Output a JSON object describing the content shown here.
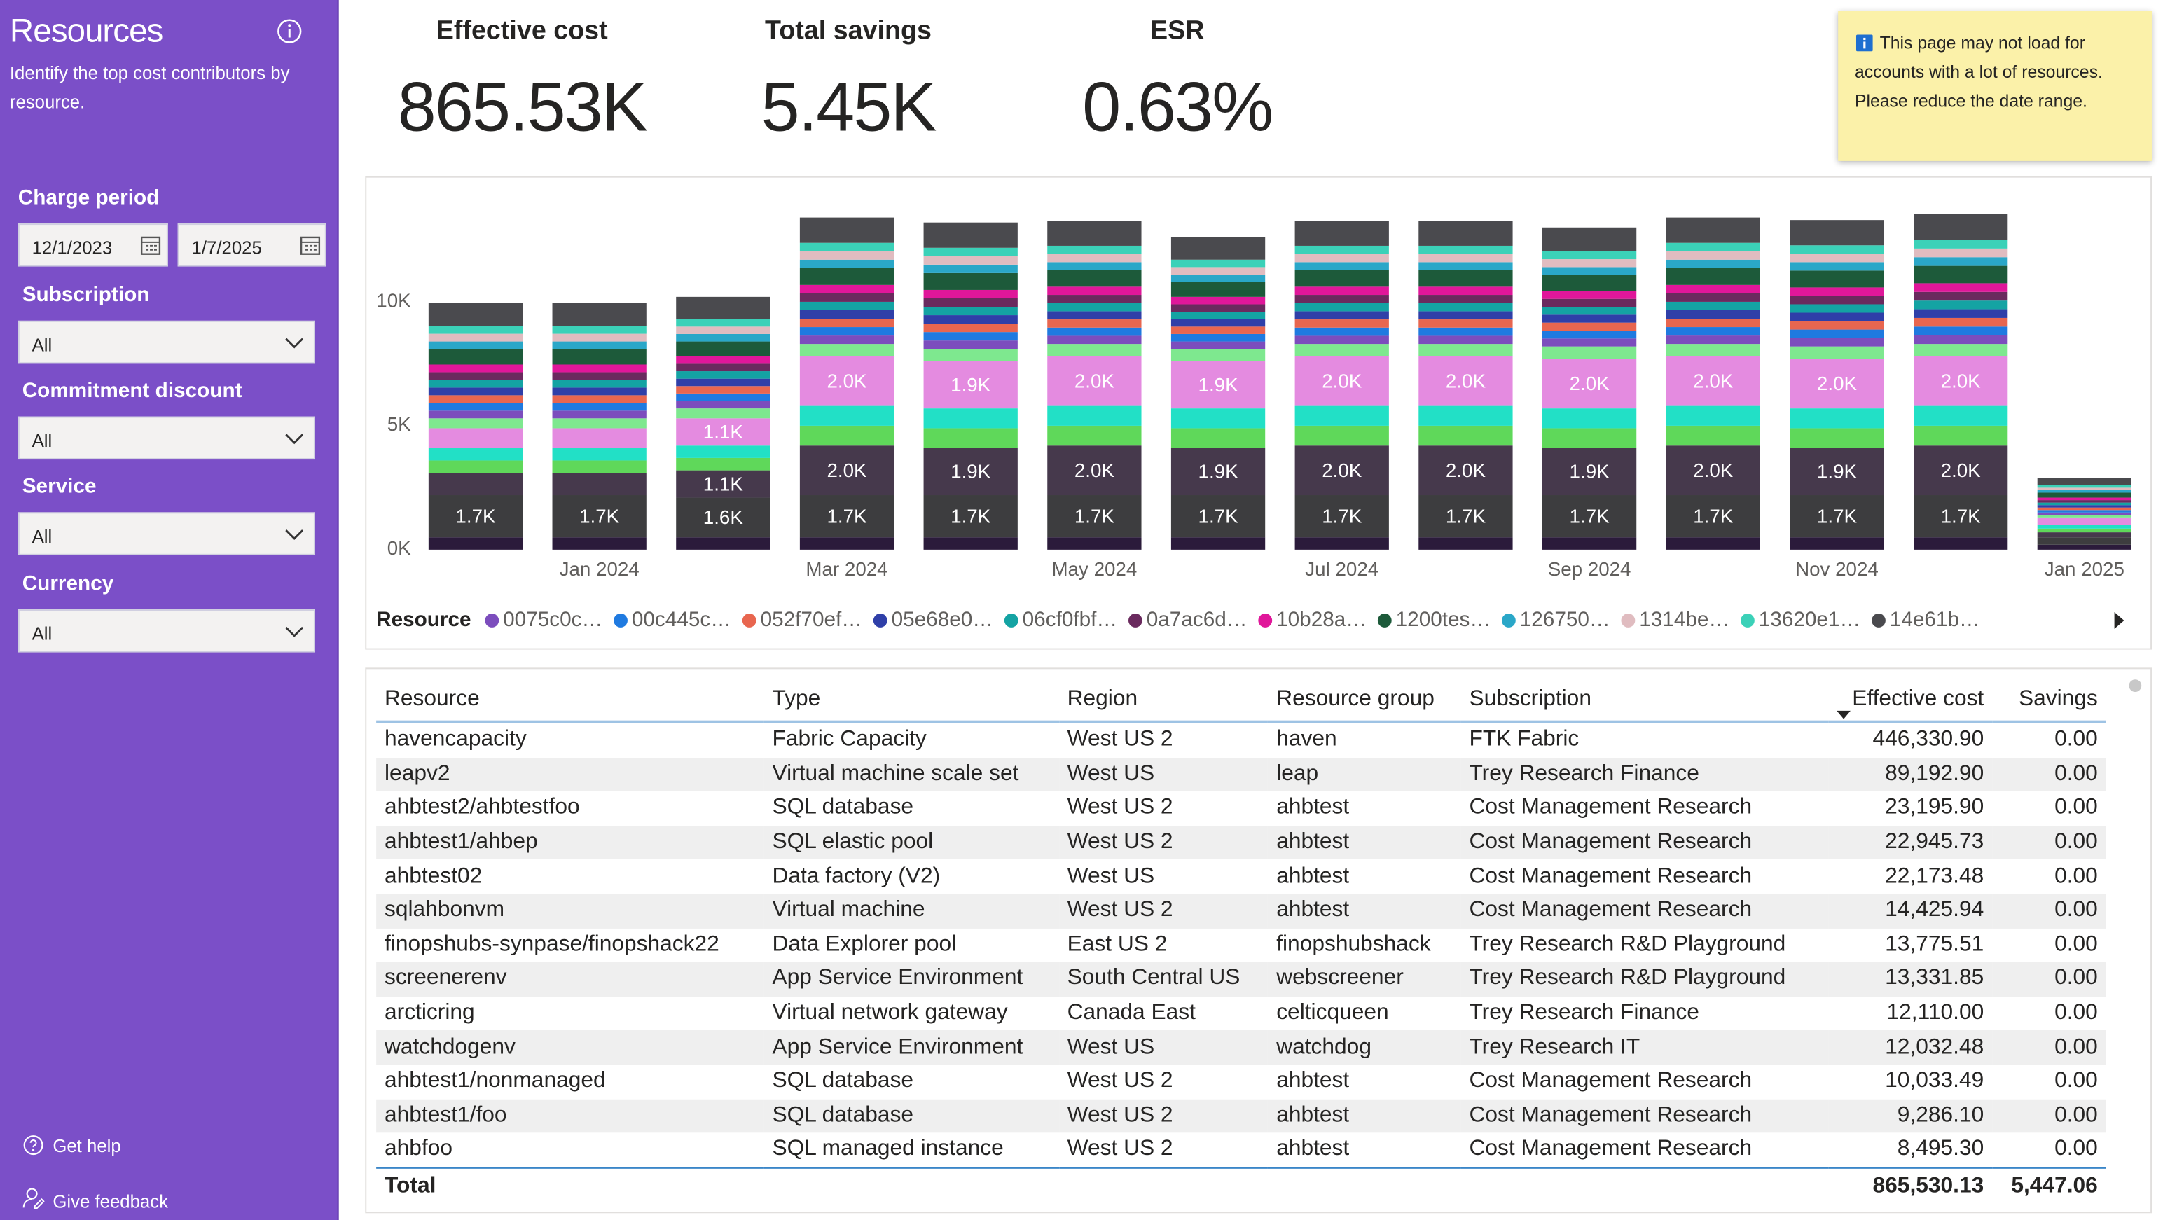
{
  "sidebar": {
    "title": "Resources",
    "description": "Identify the top cost contributors by resource.",
    "filters": [
      {
        "label": "Charge period",
        "values": [
          "12/1/2023",
          "1/7/2025"
        ]
      },
      {
        "label": "Subscription",
        "value": "All"
      },
      {
        "label": "Commitment discount",
        "value": "All"
      },
      {
        "label": "Service",
        "value": "All"
      },
      {
        "label": "Currency",
        "value": "All"
      }
    ],
    "footer": [
      "Get help",
      "Give feedback"
    ]
  },
  "kpis": [
    {
      "label": "Effective cost",
      "value": "865.53K"
    },
    {
      "label": "Total savings",
      "value": "5.45K"
    },
    {
      "label": "ESR",
      "value": "0.63%"
    }
  ],
  "notice": "This page may not load for accounts with a lot of resources. Please reduce the date range.",
  "chart_data": {
    "type": "stacked-bar",
    "legend_title": "Resource",
    "categories": [
      null,
      "Jan 2024",
      null,
      "Mar 2024",
      null,
      "May 2024",
      null,
      "Jul 2024",
      null,
      "Sep 2024",
      null,
      "Nov 2024",
      null,
      "Jan 2025"
    ],
    "ylim": [
      0,
      14000
    ],
    "yticks": [
      {
        "value": 0,
        "label": "0K"
      },
      {
        "value": 5000,
        "label": "5K"
      },
      {
        "value": 10000,
        "label": "10K"
      }
    ],
    "series": [
      {
        "color": "#2b1b3b",
        "values": [
          500,
          500,
          500,
          500,
          500,
          500,
          500,
          500,
          500,
          500,
          500,
          500,
          500,
          200
        ]
      },
      {
        "color": "#3d3d3f",
        "values": [
          1700,
          1700,
          1600,
          1700,
          1700,
          1700,
          1700,
          1700,
          1700,
          1700,
          1700,
          1700,
          1700,
          300
        ],
        "value_labels": [
          "1.7K",
          "1.7K",
          "1.6K",
          "1.7K",
          "1.7K",
          "1.7K",
          "1.7K",
          "1.7K",
          "1.7K",
          "1.7K",
          "1.7K",
          "1.7K",
          "1.7K",
          null
        ]
      },
      {
        "color": "#46394c",
        "values": [
          900,
          900,
          1100,
          2000,
          1900,
          2000,
          1900,
          2000,
          2000,
          1900,
          2000,
          1900,
          2000,
          200
        ],
        "value_labels": [
          null,
          null,
          "1.1K",
          "2.0K",
          "1.9K",
          "2.0K",
          "1.9K",
          "2.0K",
          "2.0K",
          "1.9K",
          "2.0K",
          "1.9K",
          "2.0K",
          null
        ]
      },
      {
        "color": "#5fd85a",
        "values": [
          500,
          500,
          500,
          800,
          800,
          800,
          800,
          800,
          800,
          800,
          800,
          800,
          800,
          150
        ]
      },
      {
        "color": "#22e0c6",
        "values": [
          500,
          500,
          500,
          800,
          800,
          800,
          800,
          800,
          800,
          800,
          800,
          800,
          800,
          150
        ]
      },
      {
        "color": "#e48be0",
        "values": [
          800,
          800,
          1100,
          2000,
          1900,
          2000,
          1900,
          2000,
          2000,
          2000,
          2000,
          2000,
          2000,
          300
        ],
        "value_labels": [
          null,
          null,
          "1.1K",
          "2.0K",
          "1.9K",
          "2.0K",
          "1.9K",
          "2.0K",
          "2.0K",
          "2.0K",
          "2.0K",
          "2.0K",
          "2.0K",
          null
        ]
      },
      {
        "color": "#7ee88f",
        "values": [
          400,
          400,
          400,
          500,
          500,
          500,
          500,
          500,
          500,
          500,
          500,
          500,
          500,
          100
        ]
      },
      {
        "name": "0075c0c…",
        "color": "#7c4dbd",
        "values": [
          310,
          310,
          300,
          340,
          340,
          330,
          300,
          330,
          330,
          320,
          340,
          340,
          350,
          100
        ]
      },
      {
        "name": "00c445c…",
        "color": "#1f7ae0",
        "values": [
          310,
          310,
          300,
          340,
          340,
          330,
          300,
          330,
          330,
          320,
          340,
          340,
          350,
          100
        ]
      },
      {
        "name": "052f70ef…",
        "color": "#e8664f",
        "values": [
          310,
          310,
          300,
          340,
          340,
          330,
          300,
          330,
          330,
          320,
          340,
          340,
          350,
          100
        ]
      },
      {
        "name": "05e68e0…",
        "color": "#2f3fa8",
        "values": [
          310,
          310,
          300,
          340,
          340,
          330,
          300,
          330,
          330,
          320,
          340,
          340,
          350,
          100
        ]
      },
      {
        "name": "06cf0fbf…",
        "color": "#14a3a3",
        "values": [
          310,
          310,
          300,
          340,
          340,
          330,
          300,
          330,
          330,
          320,
          340,
          340,
          350,
          100
        ]
      },
      {
        "name": "0a7ac6d…",
        "color": "#6a2a5e",
        "values": [
          310,
          310,
          300,
          340,
          340,
          330,
          300,
          330,
          330,
          320,
          340,
          340,
          350,
          100
        ]
      },
      {
        "name": "10b28a…",
        "color": "#e0179a",
        "values": [
          310,
          310,
          300,
          340,
          340,
          330,
          300,
          330,
          330,
          320,
          340,
          340,
          350,
          100
        ]
      },
      {
        "name": "1200tes…",
        "color": "#1d5a3a",
        "values": [
          620,
          620,
          600,
          680,
          680,
          660,
          600,
          660,
          660,
          640,
          680,
          680,
          700,
          200
        ]
      },
      {
        "name": "126750…",
        "color": "#2aa7c8",
        "values": [
          310,
          310,
          300,
          340,
          340,
          330,
          300,
          330,
          330,
          320,
          340,
          340,
          350,
          100
        ]
      },
      {
        "name": "1314be…",
        "color": "#e0bcc0",
        "values": [
          310,
          310,
          300,
          340,
          340,
          330,
          300,
          330,
          330,
          320,
          340,
          340,
          350,
          100
        ]
      },
      {
        "name": "13620e1…",
        "color": "#3bd1b8",
        "values": [
          310,
          310,
          300,
          340,
          340,
          330,
          300,
          330,
          330,
          320,
          340,
          340,
          350,
          100
        ]
      },
      {
        "name": "14e61b…",
        "color": "#4a4a4e",
        "values": [
          930,
          930,
          900,
          1020,
          1020,
          990,
          900,
          990,
          990,
          960,
          1020,
          1020,
          1050,
          300
        ]
      }
    ]
  },
  "table": {
    "columns": [
      "Resource",
      "Type",
      "Region",
      "Resource group",
      "Subscription",
      "Effective cost",
      "Savings"
    ],
    "rows": [
      [
        "havencapacity",
        "Fabric Capacity",
        "West US 2",
        "haven",
        "FTK Fabric",
        "446,330.90",
        "0.00"
      ],
      [
        "leapv2",
        "Virtual machine scale set",
        "West US",
        "leap",
        "Trey Research Finance",
        "89,192.90",
        "0.00"
      ],
      [
        "ahbtest2/ahbtestfoo",
        "SQL database",
        "West US 2",
        "ahbtest",
        "Cost Management Research",
        "23,195.90",
        "0.00"
      ],
      [
        "ahbtest1/ahbep",
        "SQL elastic pool",
        "West US 2",
        "ahbtest",
        "Cost Management Research",
        "22,945.73",
        "0.00"
      ],
      [
        "ahbtest02",
        "Data factory (V2)",
        "West US",
        "ahbtest",
        "Cost Management Research",
        "22,173.48",
        "0.00"
      ],
      [
        "sqlahbonvm",
        "Virtual machine",
        "West US 2",
        "ahbtest",
        "Cost Management Research",
        "14,425.94",
        "0.00"
      ],
      [
        "finopshubs-synpase/finopshack22",
        "Data Explorer pool",
        "East US 2",
        "finopshubshack",
        "Trey Research R&D Playground",
        "13,775.51",
        "0.00"
      ],
      [
        "screenerenv",
        "App Service Environment",
        "South Central US",
        "webscreener",
        "Trey Research R&D Playground",
        "13,331.85",
        "0.00"
      ],
      [
        "arcticring",
        "Virtual network gateway",
        "Canada East",
        "celticqueen",
        "Trey Research Finance",
        "12,110.00",
        "0.00"
      ],
      [
        "watchdogenv",
        "App Service Environment",
        "West US",
        "watchdog",
        "Trey Research IT",
        "12,032.48",
        "0.00"
      ],
      [
        "ahbtest1/nonmanaged",
        "SQL database",
        "West US 2",
        "ahbtest",
        "Cost Management Research",
        "10,033.49",
        "0.00"
      ],
      [
        "ahbtest1/foo",
        "SQL database",
        "West US 2",
        "ahbtest",
        "Cost Management Research",
        "9,286.10",
        "0.00"
      ],
      [
        "ahbfoo",
        "SQL managed instance",
        "West US 2",
        "ahbtest",
        "Cost Management Research",
        "8,495.30",
        "0.00"
      ]
    ],
    "total": {
      "label": "Total",
      "effective_cost": "865,530.13",
      "savings": "5,447.06"
    }
  }
}
